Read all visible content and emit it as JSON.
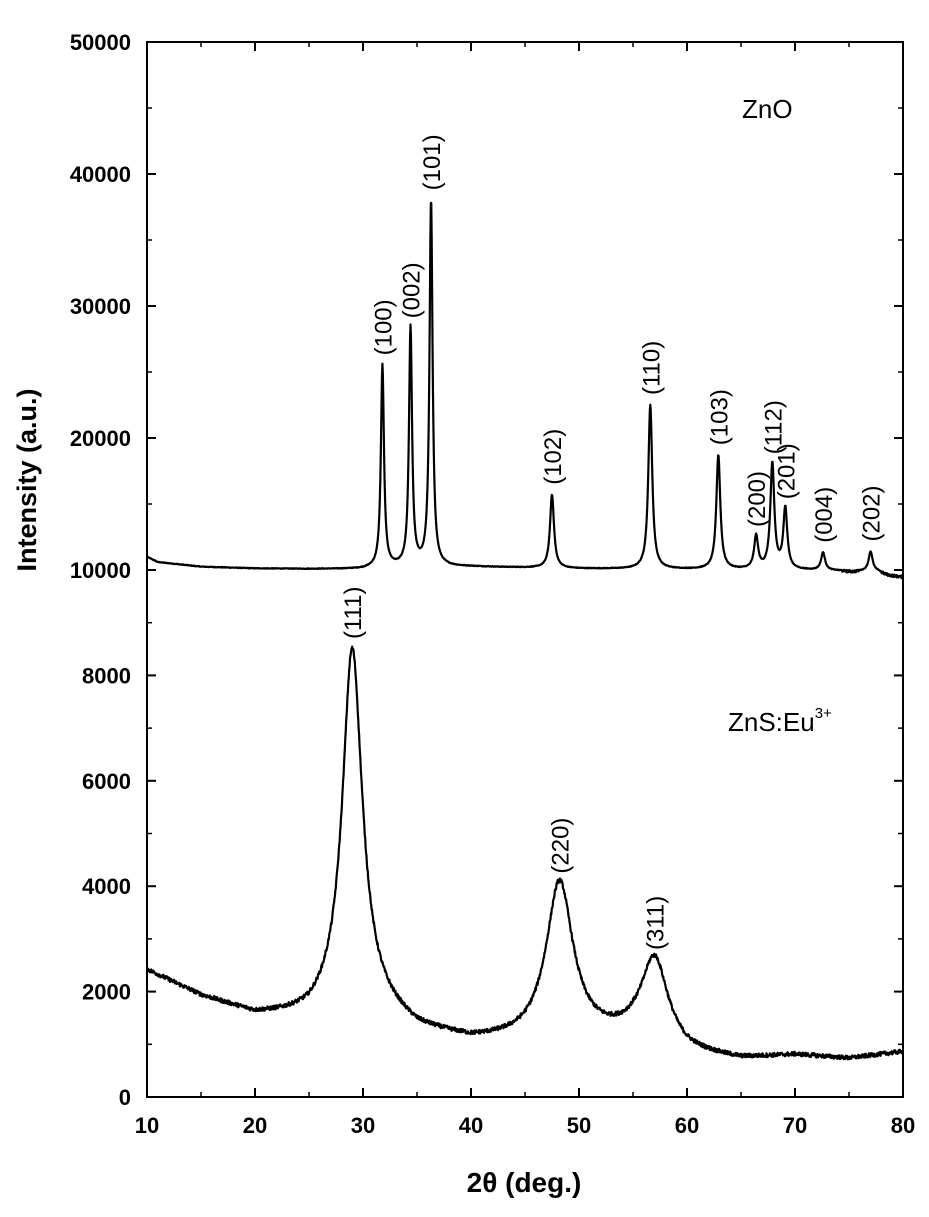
{
  "chart_data": {
    "type": "line",
    "xlabel": "2θ (deg.)",
    "ylabel": "Intensity (a.u.)",
    "xlim": [
      10,
      80
    ],
    "ylim": [
      0,
      50000
    ],
    "grid": false,
    "x_ticks": [
      "10",
      "20",
      "30",
      "40",
      "50",
      "60",
      "70",
      "80"
    ],
    "y_ticks": [
      "0",
      "2000",
      "4000",
      "6000",
      "8000",
      "10000",
      "20000",
      "30000",
      "40000",
      "50000"
    ],
    "series": [
      {
        "name": "ZnO",
        "label_parts": [
          "ZnO",
          ""
        ],
        "baseline": [
          [
            10,
            11000
          ],
          [
            11,
            10600
          ],
          [
            15,
            10250
          ],
          [
            20,
            10120
          ],
          [
            25,
            10080
          ],
          [
            30,
            10080
          ],
          [
            32,
            10200
          ],
          [
            40,
            10250
          ],
          [
            50,
            10100
          ],
          [
            60,
            10050
          ],
          [
            70,
            10000
          ],
          [
            80,
            9850
          ]
        ],
        "peaks": [
          {
            "hkl": "(100)",
            "x": 31.8,
            "y": 25500
          },
          {
            "hkl": "(002)",
            "x": 34.4,
            "y": 28300
          },
          {
            "hkl": "(101)",
            "x": 36.3,
            "y": 38000
          },
          {
            "hkl": "(102)",
            "x": 47.5,
            "y": 15700
          },
          {
            "hkl": "(110)",
            "x": 56.6,
            "y": 22500
          },
          {
            "hkl": "(103)",
            "x": 62.9,
            "y": 18700
          },
          {
            "hkl": "(200)",
            "x": 66.4,
            "y": 12500
          },
          {
            "hkl": "(112)",
            "x": 67.9,
            "y": 18000
          },
          {
            "hkl": "(201)",
            "x": 69.1,
            "y": 14600
          },
          {
            "hkl": "(004)",
            "x": 72.6,
            "y": 11300
          },
          {
            "hkl": "(202)",
            "x": 77.0,
            "y": 11400
          }
        ]
      },
      {
        "name": "ZnS:Eu3+",
        "label_parts": [
          "ZnS:Eu",
          "3+"
        ],
        "baseline": [
          [
            10,
            2400
          ],
          [
            15,
            1900
          ],
          [
            20,
            1550
          ],
          [
            25,
            1500
          ],
          [
            30,
            1800
          ],
          [
            35,
            1250
          ],
          [
            40,
            1050
          ],
          [
            45,
            1050
          ],
          [
            50,
            1100
          ],
          [
            55,
            1100
          ],
          [
            60,
            800
          ],
          [
            65,
            700
          ],
          [
            70,
            780
          ],
          [
            75,
            720
          ],
          [
            80,
            850
          ]
        ],
        "peaks": [
          {
            "hkl": "(111)",
            "x": 29.0,
            "y": 8500
          },
          {
            "hkl": "(220)",
            "x": 48.2,
            "y": 4050
          },
          {
            "hkl": "(311)",
            "x": 57.0,
            "y": 2600
          }
        ]
      }
    ]
  }
}
